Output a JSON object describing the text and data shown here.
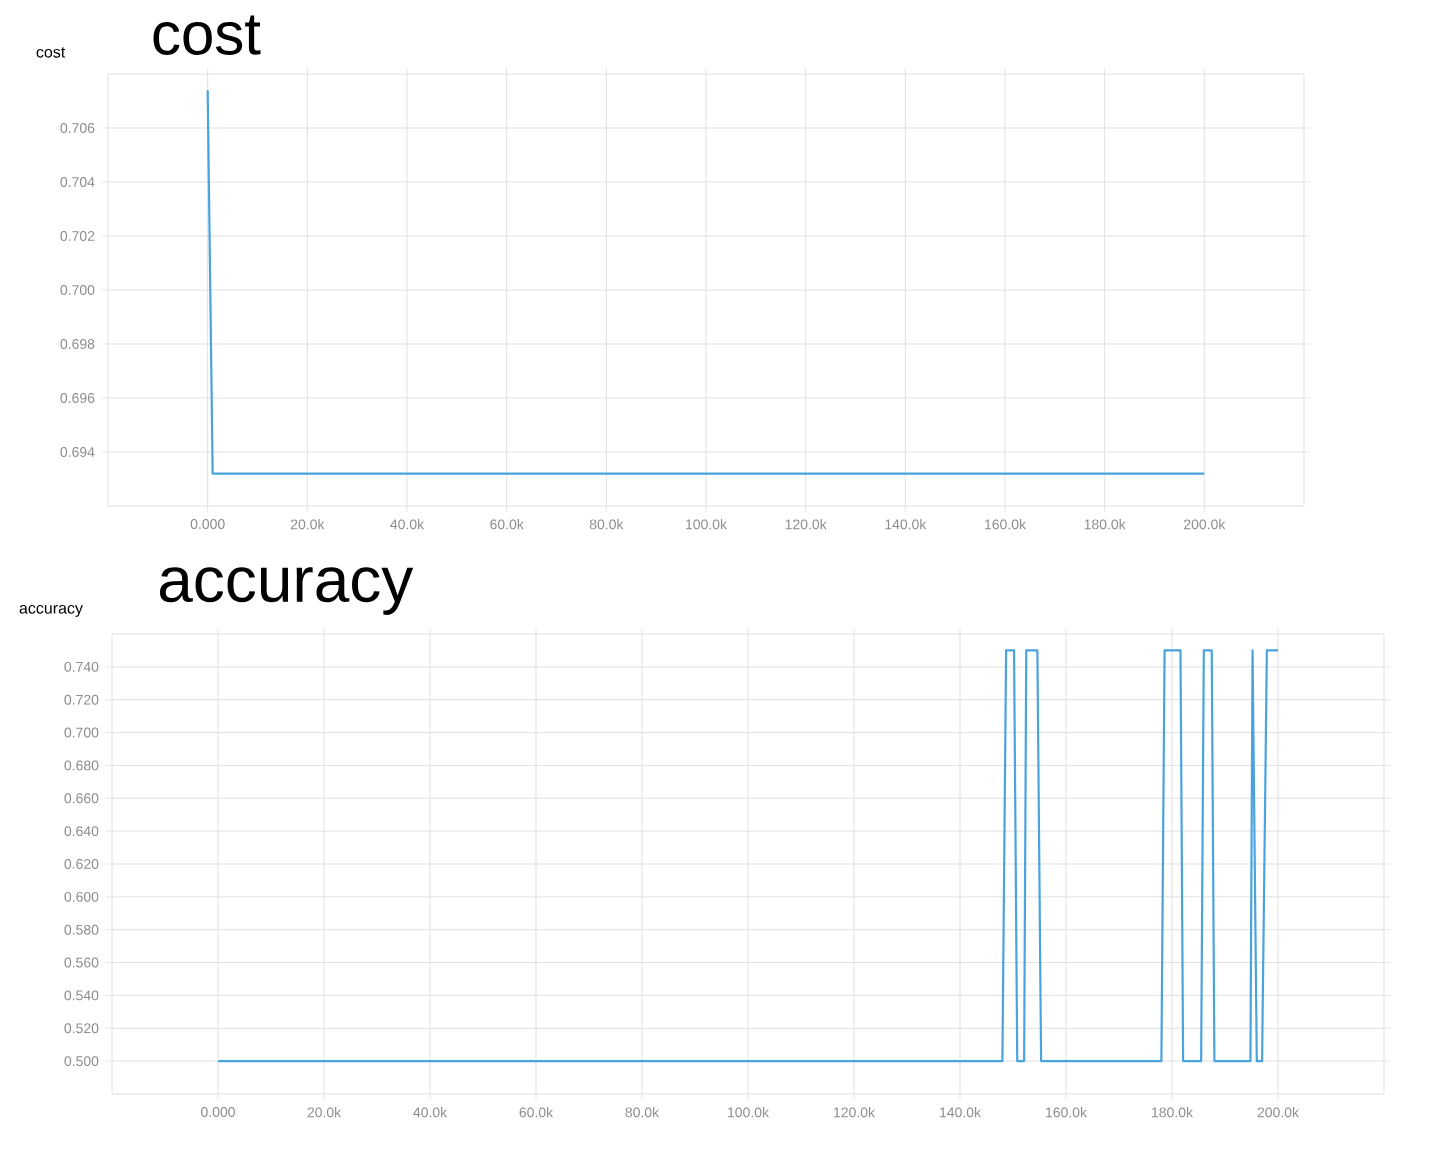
{
  "chart_data": [
    {
      "type": "line",
      "title": "cost",
      "ylabel": "cost",
      "color": "#4aa3df",
      "grid": true,
      "x": [
        0,
        1000,
        200000
      ],
      "values": [
        0.7074,
        0.6932,
        0.6932
      ],
      "xlim": [
        -20000,
        220000
      ],
      "ylim": [
        0.692,
        0.708
      ],
      "xticks": [
        {
          "value": 0,
          "label": "0.000"
        },
        {
          "value": 20000,
          "label": "20.0k"
        },
        {
          "value": 40000,
          "label": "40.0k"
        },
        {
          "value": 60000,
          "label": "60.0k"
        },
        {
          "value": 80000,
          "label": "80.0k"
        },
        {
          "value": 100000,
          "label": "100.0k"
        },
        {
          "value": 120000,
          "label": "120.0k"
        },
        {
          "value": 140000,
          "label": "140.0k"
        },
        {
          "value": 160000,
          "label": "160.0k"
        },
        {
          "value": 180000,
          "label": "180.0k"
        },
        {
          "value": 200000,
          "label": "200.0k"
        }
      ],
      "yticks": [
        {
          "value": 0.694,
          "label": "0.694"
        },
        {
          "value": 0.696,
          "label": "0.696"
        },
        {
          "value": 0.698,
          "label": "0.698"
        },
        {
          "value": 0.7,
          "label": "0.700"
        },
        {
          "value": 0.702,
          "label": "0.702"
        },
        {
          "value": 0.704,
          "label": "0.704"
        },
        {
          "value": 0.706,
          "label": "0.706"
        }
      ]
    },
    {
      "type": "line",
      "title": "accuracy",
      "ylabel": "accuracy",
      "color": "#4aa3df",
      "grid": true,
      "x": [
        0,
        148000,
        148700,
        150200,
        150800,
        152100,
        152500,
        154600,
        155300,
        178000,
        178600,
        181600,
        182100,
        185500,
        186000,
        187500,
        188000,
        194800,
        195200,
        196000,
        197000,
        197900,
        200000
      ],
      "values": [
        0.5,
        0.5,
        0.75,
        0.75,
        0.5,
        0.5,
        0.75,
        0.75,
        0.5,
        0.5,
        0.75,
        0.75,
        0.5,
        0.5,
        0.75,
        0.75,
        0.5,
        0.5,
        0.75,
        0.5,
        0.5,
        0.75,
        0.75
      ],
      "xlim": [
        -20000,
        220000
      ],
      "ylim": [
        0.48,
        0.76
      ],
      "xticks": [
        {
          "value": 0,
          "label": "0.000"
        },
        {
          "value": 20000,
          "label": "20.0k"
        },
        {
          "value": 40000,
          "label": "40.0k"
        },
        {
          "value": 60000,
          "label": "60.0k"
        },
        {
          "value": 80000,
          "label": "80.0k"
        },
        {
          "value": 100000,
          "label": "100.0k"
        },
        {
          "value": 120000,
          "label": "120.0k"
        },
        {
          "value": 140000,
          "label": "140.0k"
        },
        {
          "value": 160000,
          "label": "160.0k"
        },
        {
          "value": 180000,
          "label": "180.0k"
        },
        {
          "value": 200000,
          "label": "200.0k"
        }
      ],
      "yticks": [
        {
          "value": 0.5,
          "label": "0.500"
        },
        {
          "value": 0.52,
          "label": "0.520"
        },
        {
          "value": 0.54,
          "label": "0.540"
        },
        {
          "value": 0.56,
          "label": "0.560"
        },
        {
          "value": 0.58,
          "label": "0.580"
        },
        {
          "value": 0.6,
          "label": "0.600"
        },
        {
          "value": 0.62,
          "label": "0.620"
        },
        {
          "value": 0.64,
          "label": "0.640"
        },
        {
          "value": 0.66,
          "label": "0.660"
        },
        {
          "value": 0.68,
          "label": "0.680"
        },
        {
          "value": 0.7,
          "label": "0.700"
        },
        {
          "value": 0.72,
          "label": "0.720"
        },
        {
          "value": 0.74,
          "label": "0.740"
        }
      ]
    }
  ]
}
